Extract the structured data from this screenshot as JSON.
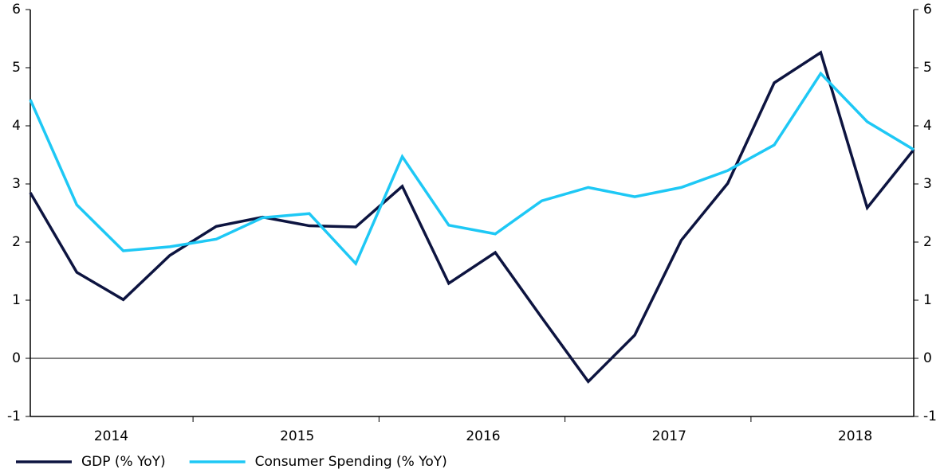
{
  "chart_data": {
    "type": "line",
    "x": [
      2014.125,
      2014.375,
      2014.625,
      2014.875,
      2015.125,
      2015.375,
      2015.625,
      2015.875,
      2016.125,
      2016.375,
      2016.625,
      2016.875,
      2017.125,
      2017.375,
      2017.625,
      2017.875,
      2018.125,
      2018.375,
      2018.625,
      2018.875
    ],
    "xlim": [
      2014.125,
      2018.875
    ],
    "xticks": [
      {
        "value": 2014.5,
        "label": "2014"
      },
      {
        "value": 2015.5,
        "label": "2015"
      },
      {
        "value": 2016.5,
        "label": "2016"
      },
      {
        "value": 2017.5,
        "label": "2017"
      },
      {
        "value": 2018.5,
        "label": "2018"
      }
    ],
    "series": [
      {
        "name": "GDP (% YoY)",
        "color": "#0d1440",
        "values": [
          2.85,
          1.48,
          1.01,
          1.77,
          2.27,
          2.43,
          2.28,
          2.26,
          2.96,
          1.29,
          1.82,
          0.7,
          -0.4,
          0.4,
          2.03,
          3.01,
          4.74,
          5.26,
          2.59,
          3.59
        ]
      },
      {
        "name": "Consumer Spending (% YoY)",
        "color": "#1ec8f5",
        "values": [
          4.45,
          2.64,
          1.85,
          1.92,
          2.05,
          2.42,
          2.49,
          1.63,
          3.47,
          2.29,
          2.14,
          2.71,
          2.94,
          2.78,
          2.94,
          3.23,
          3.67,
          4.9,
          4.07,
          3.59
        ]
      }
    ],
    "ylim": [
      -1,
      6
    ],
    "yticks": [
      -1,
      0,
      1,
      2,
      3,
      4,
      5,
      6
    ],
    "y2lim": [
      -1,
      6
    ],
    "y2ticks": [
      -1,
      0,
      1,
      2,
      3,
      4,
      5,
      6
    ],
    "legend": "bottom-left"
  }
}
